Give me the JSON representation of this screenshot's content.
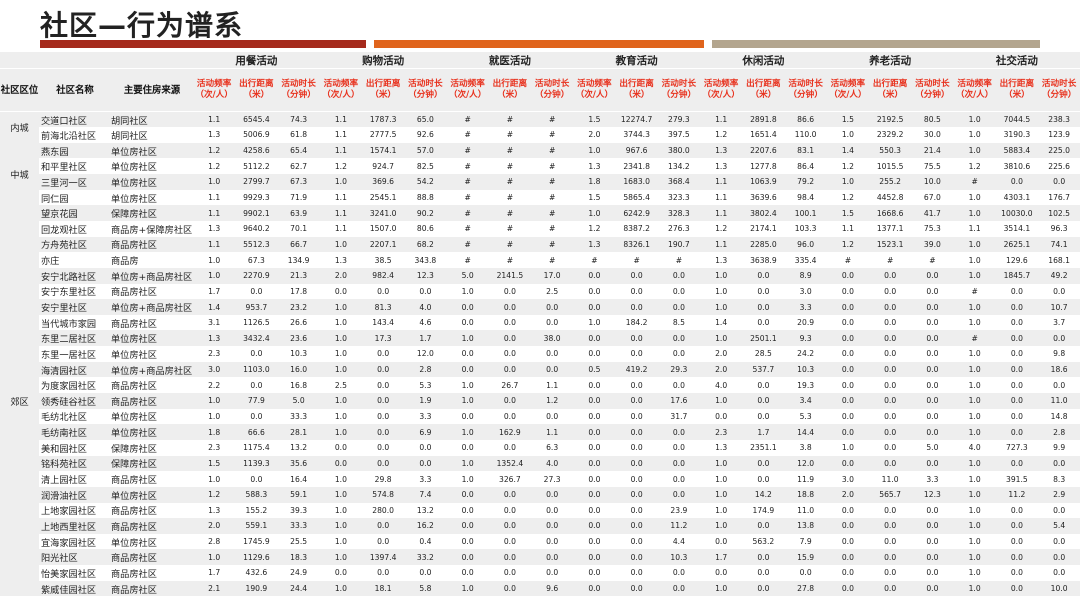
{
  "title": "社区—行为谱系",
  "colors": {
    "bar1": "#a52a1c",
    "bar2": "#e0641c",
    "bar3": "#b3a58e",
    "header_metric": "#e8321e"
  },
  "key_headers": [
    "社区区位",
    "社区名称",
    "主要住房来源"
  ],
  "groups": [
    "用餐活动",
    "购物活动",
    "就医活动",
    "教育活动",
    "休闲活动",
    "养老活动",
    "社交活动"
  ],
  "metric_headers": [
    [
      "活动频率（次/人）",
      "出行距离（米）",
      "活动时长（分钟）"
    ],
    [
      "活动频率（次/人）",
      "出行距离（米）",
      "活动时长（分钟）"
    ],
    [
      "活动频率（次/人）",
      "出行距离（米）",
      "活动时长（分钟）"
    ],
    [
      "活动频率（次/人）",
      "出行距离（米）",
      "活动时长（分钟）"
    ],
    [
      "活动频率（次/人）",
      "出行距离（米）",
      "活动时长（分钟）"
    ],
    [
      "活动频率（次/人）",
      "出行距离（米）",
      "活动时长（分钟）"
    ],
    [
      "活动频率（次/人）",
      "出行距离（米）",
      "活动时长（分钟）"
    ]
  ],
  "regions": [
    {
      "name": "内城",
      "rows": [
        [
          "交道口社区",
          "胡同社区",
          "1.1",
          "6545.4",
          "74.3",
          "1.1",
          "1787.3",
          "65.0",
          "#",
          "#",
          "#",
          "1.5",
          "12274.7",
          "279.3",
          "1.1",
          "2891.8",
          "86.6",
          "1.5",
          "2192.5",
          "80.5",
          "1.0",
          "7044.5",
          "238.3"
        ],
        [
          "前海北沿社区",
          "胡同社区",
          "1.3",
          "5006.9",
          "61.8",
          "1.1",
          "2777.5",
          "92.6",
          "#",
          "#",
          "#",
          "2.0",
          "3744.3",
          "397.5",
          "1.2",
          "1651.4",
          "110.0",
          "1.0",
          "2329.2",
          "30.0",
          "1.0",
          "3190.3",
          "123.9"
        ]
      ]
    },
    {
      "name": "中城",
      "rows": [
        [
          "燕东园",
          "单位房社区",
          "1.2",
          "4258.6",
          "65.4",
          "1.1",
          "1574.1",
          "57.0",
          "#",
          "#",
          "#",
          "1.0",
          "967.6",
          "380.0",
          "1.3",
          "2207.6",
          "83.1",
          "1.4",
          "550.3",
          "21.4",
          "1.0",
          "5883.4",
          "225.0"
        ],
        [
          "和平里社区",
          "单位房社区",
          "1.2",
          "5112.2",
          "62.7",
          "1.2",
          "924.7",
          "82.5",
          "#",
          "#",
          "#",
          "1.3",
          "2341.8",
          "134.2",
          "1.3",
          "1277.8",
          "86.4",
          "1.2",
          "1015.5",
          "75.5",
          "1.2",
          "3810.6",
          "225.6"
        ],
        [
          "三里河一区",
          "单位房社区",
          "1.0",
          "2799.7",
          "67.3",
          "1.0",
          "369.6",
          "54.2",
          "#",
          "#",
          "#",
          "1.8",
          "1683.0",
          "368.4",
          "1.1",
          "1063.9",
          "79.2",
          "1.0",
          "255.2",
          "10.0",
          "#",
          "0.0",
          "0.0"
        ],
        [
          "同仁园",
          "单位房社区",
          "1.1",
          "9929.3",
          "71.9",
          "1.1",
          "2545.1",
          "88.8",
          "#",
          "#",
          "#",
          "1.5",
          "5865.4",
          "323.3",
          "1.1",
          "3639.6",
          "98.4",
          "1.2",
          "4452.8",
          "67.0",
          "1.0",
          "4303.1",
          "176.7"
        ]
      ]
    },
    {
      "name": "郊区",
      "rows": [
        [
          "望京花园",
          "保障房社区",
          "1.1",
          "9902.1",
          "63.9",
          "1.1",
          "3241.0",
          "90.2",
          "#",
          "#",
          "#",
          "1.0",
          "6242.9",
          "328.3",
          "1.1",
          "3802.4",
          "100.1",
          "1.5",
          "1668.6",
          "41.7",
          "1.0",
          "10030.0",
          "102.5"
        ],
        [
          "回龙观社区",
          "商品房+保障房社区",
          "1.3",
          "9640.2",
          "70.1",
          "1.1",
          "1507.0",
          "80.6",
          "#",
          "#",
          "#",
          "1.2",
          "8387.2",
          "276.3",
          "1.2",
          "2174.1",
          "103.3",
          "1.1",
          "1377.1",
          "75.3",
          "1.1",
          "3514.1",
          "96.3"
        ],
        [
          "方舟苑社区",
          "商品房社区",
          "1.1",
          "5512.3",
          "66.7",
          "1.0",
          "2207.1",
          "68.2",
          "#",
          "#",
          "#",
          "1.3",
          "8326.1",
          "190.7",
          "1.1",
          "2285.0",
          "96.0",
          "1.2",
          "1523.1",
          "39.0",
          "1.0",
          "2625.1",
          "74.1"
        ],
        [
          "亦庄",
          "商品房",
          "1.0",
          "67.3",
          "134.9",
          "1.3",
          "38.5",
          "343.8",
          "#",
          "#",
          "#",
          "#",
          "#",
          "#",
          "1.3",
          "3638.9",
          "335.4",
          "#",
          "#",
          "#",
          "1.0",
          "129.6",
          "168.1"
        ],
        [
          "安宁北路社区",
          "单位房+商品房社区",
          "1.0",
          "2270.9",
          "21.3",
          "2.0",
          "982.4",
          "12.3",
          "5.0",
          "2141.5",
          "17.0",
          "0.0",
          "0.0",
          "0.0",
          "1.0",
          "0.0",
          "8.9",
          "0.0",
          "0.0",
          "0.0",
          "1.0",
          "1845.7",
          "49.2"
        ],
        [
          "安宁东里社区",
          "商品房社区",
          "1.7",
          "0.0",
          "17.8",
          "0.0",
          "0.0",
          "0.0",
          "1.0",
          "0.0",
          "2.5",
          "0.0",
          "0.0",
          "0.0",
          "1.0",
          "0.0",
          "3.0",
          "0.0",
          "0.0",
          "0.0",
          "#",
          "0.0",
          "0.0"
        ],
        [
          "安宁里社区",
          "单位房+商品房社区",
          "1.4",
          "953.7",
          "23.2",
          "1.0",
          "81.3",
          "4.0",
          "0.0",
          "0.0",
          "0.0",
          "0.0",
          "0.0",
          "0.0",
          "1.0",
          "0.0",
          "3.3",
          "0.0",
          "0.0",
          "0.0",
          "1.0",
          "0.0",
          "10.7"
        ],
        [
          "当代城市家园",
          "商品房社区",
          "3.1",
          "1126.5",
          "26.6",
          "1.0",
          "143.4",
          "4.6",
          "0.0",
          "0.0",
          "0.0",
          "1.0",
          "184.2",
          "8.5",
          "1.4",
          "0.0",
          "20.9",
          "0.0",
          "0.0",
          "0.0",
          "1.0",
          "0.0",
          "3.7"
        ],
        [
          "东里二居社区",
          "单位房社区",
          "1.3",
          "3432.4",
          "23.6",
          "1.0",
          "17.3",
          "1.7",
          "1.0",
          "0.0",
          "38.0",
          "0.0",
          "0.0",
          "0.0",
          "1.0",
          "2501.1",
          "9.3",
          "0.0",
          "0.0",
          "0.0",
          "#",
          "0.0",
          "0.0"
        ],
        [
          "东里一居社区",
          "单位房社区",
          "2.3",
          "0.0",
          "10.3",
          "1.0",
          "0.0",
          "12.0",
          "0.0",
          "0.0",
          "0.0",
          "0.0",
          "0.0",
          "0.0",
          "2.0",
          "28.5",
          "24.2",
          "0.0",
          "0.0",
          "0.0",
          "1.0",
          "0.0",
          "9.8"
        ],
        [
          "海清园社区",
          "单位房+商品房社区",
          "3.0",
          "1103.0",
          "16.0",
          "1.0",
          "0.0",
          "2.8",
          "0.0",
          "0.0",
          "0.0",
          "0.5",
          "419.2",
          "29.3",
          "2.0",
          "537.7",
          "10.3",
          "0.0",
          "0.0",
          "0.0",
          "1.0",
          "0.0",
          "18.6"
        ],
        [
          "为度家园社区",
          "商品房社区",
          "2.2",
          "0.0",
          "16.8",
          "2.5",
          "0.0",
          "5.3",
          "1.0",
          "26.7",
          "1.1",
          "0.0",
          "0.0",
          "0.0",
          "4.0",
          "0.0",
          "19.3",
          "0.0",
          "0.0",
          "0.0",
          "1.0",
          "0.0",
          "0.0"
        ],
        [
          "领秀硅谷社区",
          "商品房社区",
          "1.0",
          "77.9",
          "5.0",
          "1.0",
          "0.0",
          "1.9",
          "1.0",
          "0.0",
          "1.2",
          "0.0",
          "0.0",
          "17.6",
          "1.0",
          "0.0",
          "3.4",
          "0.0",
          "0.0",
          "0.0",
          "1.0",
          "0.0",
          "11.0"
        ],
        [
          "毛纺北社区",
          "单位房社区",
          "1.0",
          "0.0",
          "33.3",
          "1.0",
          "0.0",
          "3.3",
          "0.0",
          "0.0",
          "0.0",
          "0.0",
          "0.0",
          "31.7",
          "0.0",
          "0.0",
          "5.3",
          "0.0",
          "0.0",
          "0.0",
          "1.0",
          "0.0",
          "14.8"
        ],
        [
          "毛纺南社区",
          "单位房社区",
          "1.8",
          "66.6",
          "28.1",
          "1.0",
          "0.0",
          "6.9",
          "1.0",
          "162.9",
          "1.1",
          "0.0",
          "0.0",
          "0.0",
          "2.3",
          "1.7",
          "14.4",
          "0.0",
          "0.0",
          "0.0",
          "1.0",
          "0.0",
          "2.8"
        ],
        [
          "美和园社区",
          "保障房社区",
          "2.3",
          "1175.4",
          "13.2",
          "0.0",
          "0.0",
          "0.0",
          "0.0",
          "0.0",
          "6.3",
          "0.0",
          "0.0",
          "0.0",
          "1.3",
          "2351.1",
          "3.8",
          "1.0",
          "0.0",
          "5.0",
          "4.0",
          "727.3",
          "9.9"
        ],
        [
          "铭科苑社区",
          "保障房社区",
          "1.5",
          "1139.3",
          "35.6",
          "0.0",
          "0.0",
          "0.0",
          "1.0",
          "1352.4",
          "4.0",
          "0.0",
          "0.0",
          "0.0",
          "1.0",
          "0.0",
          "12.0",
          "0.0",
          "0.0",
          "0.0",
          "1.0",
          "0.0",
          "0.0"
        ],
        [
          "清上园社区",
          "商品房社区",
          "1.0",
          "0.0",
          "16.4",
          "1.0",
          "29.8",
          "3.3",
          "1.0",
          "326.7",
          "27.3",
          "0.0",
          "0.0",
          "0.0",
          "1.0",
          "0.0",
          "11.9",
          "3.0",
          "11.0",
          "3.3",
          "1.0",
          "391.5",
          "8.3"
        ],
        [
          "润滑油社区",
          "单位房社区",
          "1.2",
          "588.3",
          "59.1",
          "1.0",
          "574.8",
          "7.4",
          "0.0",
          "0.0",
          "0.0",
          "0.0",
          "0.0",
          "0.0",
          "1.0",
          "14.2",
          "18.8",
          "2.0",
          "565.7",
          "12.3",
          "1.0",
          "11.2",
          "2.9"
        ],
        [
          "上地家园社区",
          "商品房社区",
          "1.3",
          "155.2",
          "39.3",
          "1.0",
          "280.0",
          "13.2",
          "0.0",
          "0.0",
          "0.0",
          "0.0",
          "0.0",
          "23.9",
          "1.0",
          "174.9",
          "11.0",
          "0.0",
          "0.0",
          "0.0",
          "1.0",
          "0.0",
          "0.0"
        ],
        [
          "上地西里社区",
          "商品房社区",
          "2.0",
          "559.1",
          "33.3",
          "1.0",
          "0.0",
          "16.2",
          "0.0",
          "0.0",
          "0.0",
          "0.0",
          "0.0",
          "11.2",
          "1.0",
          "0.0",
          "13.8",
          "0.0",
          "0.0",
          "0.0",
          "1.0",
          "0.0",
          "5.4"
        ],
        [
          "宜海家园社区",
          "单位房社区",
          "2.8",
          "1745.9",
          "25.5",
          "1.0",
          "0.0",
          "0.4",
          "0.0",
          "0.0",
          "0.0",
          "0.0",
          "0.0",
          "4.4",
          "0.0",
          "563.2",
          "7.9",
          "0.0",
          "0.0",
          "0.0",
          "1.0",
          "0.0",
          "0.0"
        ],
        [
          "阳光社区",
          "商品房社区",
          "1.0",
          "1129.6",
          "18.3",
          "1.0",
          "1397.4",
          "33.2",
          "0.0",
          "0.0",
          "0.0",
          "0.0",
          "0.0",
          "10.3",
          "1.7",
          "0.0",
          "15.9",
          "0.0",
          "0.0",
          "0.0",
          "1.0",
          "0.0",
          "0.0"
        ],
        [
          "怡美家园社区",
          "商品房社区",
          "1.7",
          "432.6",
          "24.9",
          "0.0",
          "0.0",
          "0.0",
          "0.0",
          "0.0",
          "0.0",
          "0.0",
          "0.0",
          "0.0",
          "0.0",
          "0.0",
          "0.0",
          "0.0",
          "0.0",
          "0.0",
          "1.0",
          "0.0",
          "0.0"
        ],
        [
          "紫威佳园社区",
          "商品房社区",
          "2.1",
          "190.9",
          "24.4",
          "1.0",
          "18.1",
          "5.8",
          "1.0",
          "0.0",
          "9.6",
          "0.0",
          "0.0",
          "0.0",
          "1.0",
          "0.0",
          "27.8",
          "0.0",
          "0.0",
          "0.0",
          "1.0",
          "0.0",
          "10.0"
        ]
      ]
    }
  ]
}
